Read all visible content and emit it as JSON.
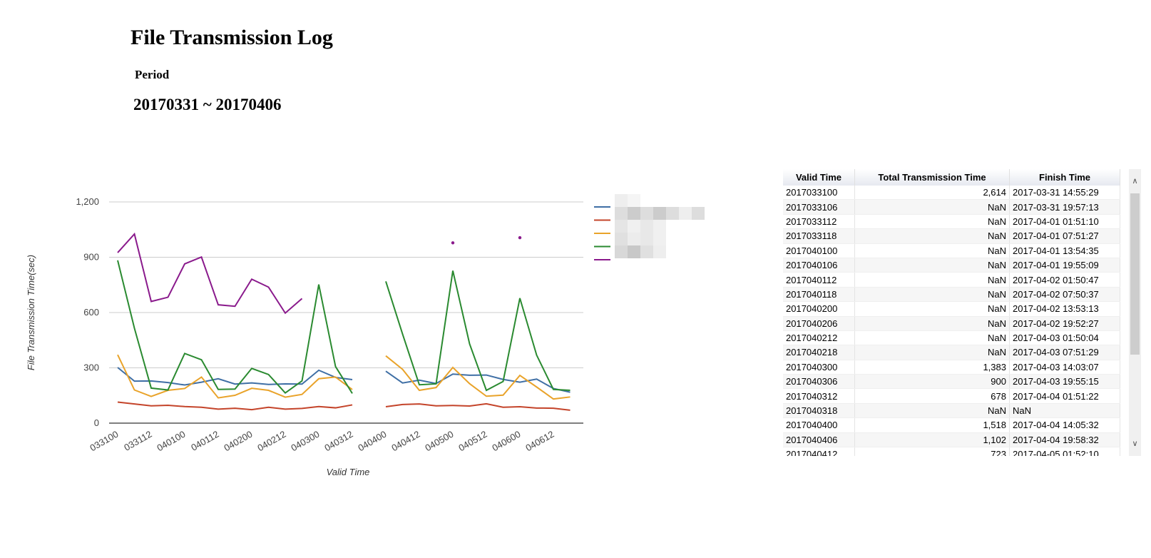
{
  "page": {
    "title": "File Transmission Log",
    "period_label": "Period",
    "period_value": "20170331 ~ 20170406"
  },
  "chart_data": {
    "type": "line",
    "xlabel": "Valid Time",
    "ylabel": "File Transmission Time(sec)",
    "ylim": [
      0,
      1200
    ],
    "yticks": [
      0,
      300,
      600,
      900,
      1200
    ],
    "ytick_labels": [
      "0",
      "300",
      "600",
      "900",
      "1,200"
    ],
    "grid": true,
    "legend": "right (series names obscured)",
    "categories": [
      "033100",
      "033106",
      "033112",
      "033118",
      "040100",
      "040106",
      "040112",
      "040118",
      "040200",
      "040206",
      "040212",
      "040218",
      "040300",
      "040306",
      "040312",
      "040318",
      "040400",
      "040406",
      "040412",
      "040418",
      "040500",
      "040506",
      "040512",
      "040518",
      "040600",
      "040606",
      "040612",
      "040618"
    ],
    "x_tick_labels": [
      "033100",
      "033112",
      "040100",
      "040112",
      "040200",
      "040212",
      "040300",
      "040312",
      "040400",
      "040412",
      "040500",
      "040512",
      "040600",
      "040612"
    ],
    "series": [
      {
        "color": "#3f6fa5",
        "values": [
          302,
          228,
          229,
          220,
          207,
          222,
          241,
          212,
          218,
          210,
          213,
          212,
          287,
          248,
          236,
          null,
          282,
          218,
          233,
          215,
          266,
          260,
          261,
          237,
          222,
          239,
          188,
          168
        ]
      },
      {
        "color": "#c4442a",
        "values": [
          114,
          104,
          94,
          97,
          90,
          86,
          76,
          81,
          73,
          86,
          76,
          80,
          90,
          83,
          99,
          null,
          89,
          101,
          104,
          94,
          96,
          93,
          105,
          86,
          89,
          82,
          81,
          70
        ]
      },
      {
        "color": "#e9a32a",
        "values": [
          371,
          180,
          145,
          178,
          188,
          250,
          137,
          151,
          189,
          178,
          141,
          156,
          241,
          250,
          182,
          null,
          365,
          292,
          178,
          193,
          302,
          214,
          146,
          152,
          259,
          196,
          131,
          142
        ]
      },
      {
        "color": "#2a8a30",
        "values": [
          883,
          515,
          190,
          180,
          378,
          344,
          183,
          185,
          297,
          264,
          164,
          229,
          752,
          307,
          161,
          null,
          769,
          483,
          208,
          213,
          827,
          430,
          178,
          226,
          678,
          369,
          183,
          178
        ]
      },
      {
        "color": "#8a1a8c",
        "values": [
          925,
          1026,
          660,
          683,
          864,
          901,
          642,
          634,
          781,
          738,
          597,
          676,
          null,
          null,
          null,
          null,
          null,
          null,
          null,
          null,
          978,
          null,
          null,
          null,
          1006,
          null,
          null,
          null
        ]
      }
    ]
  },
  "table": {
    "headers": [
      "Valid Time",
      "Total Transmission Time",
      "Finish Time"
    ],
    "rows": [
      [
        "2017033100",
        "2,614",
        "2017-03-31 14:55:29"
      ],
      [
        "2017033106",
        "NaN",
        "2017-03-31 19:57:13"
      ],
      [
        "2017033112",
        "NaN",
        "2017-04-01 01:51:10"
      ],
      [
        "2017033118",
        "NaN",
        "2017-04-01 07:51:27"
      ],
      [
        "2017040100",
        "NaN",
        "2017-04-01 13:54:35"
      ],
      [
        "2017040106",
        "NaN",
        "2017-04-01 19:55:09"
      ],
      [
        "2017040112",
        "NaN",
        "2017-04-02 01:50:47"
      ],
      [
        "2017040118",
        "NaN",
        "2017-04-02 07:50:37"
      ],
      [
        "2017040200",
        "NaN",
        "2017-04-02 13:53:13"
      ],
      [
        "2017040206",
        "NaN",
        "2017-04-02 19:52:27"
      ],
      [
        "2017040212",
        "NaN",
        "2017-04-03 01:50:04"
      ],
      [
        "2017040218",
        "NaN",
        "2017-04-03 07:51:29"
      ],
      [
        "2017040300",
        "1,383",
        "2017-04-03 14:03:07"
      ],
      [
        "2017040306",
        "900",
        "2017-04-03 19:55:15"
      ],
      [
        "2017040312",
        "678",
        "2017-04-04 01:51:22"
      ],
      [
        "2017040318",
        "NaN",
        "NaN"
      ],
      [
        "2017040400",
        "1,518",
        "2017-04-04 14:05:32"
      ],
      [
        "2017040406",
        "1,102",
        "2017-04-04 19:58:32"
      ],
      [
        "2017040412",
        "723",
        "2017-04-05 01:52:10"
      ]
    ]
  },
  "scrollbar": {
    "up_icon": "chevron-up-icon",
    "down_icon": "chevron-down-icon"
  }
}
